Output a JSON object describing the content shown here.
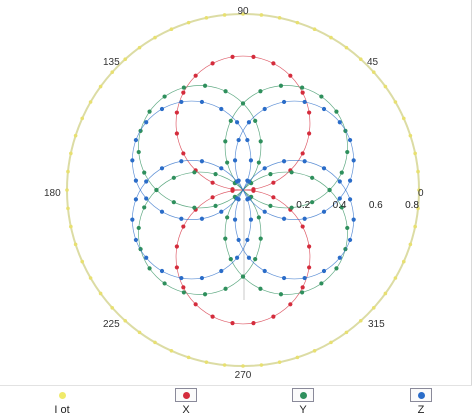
{
  "chart_data": {
    "type": "polar-scatter",
    "r_ticks": [
      "0.2",
      "0.4",
      "0.6",
      "0.8"
    ],
    "angle_ticks": [
      "0",
      "45",
      "90",
      "135",
      "180",
      "225",
      "270",
      "315"
    ],
    "r_max": 0.92,
    "grid": false,
    "legend_position": "bottom",
    "series": [
      {
        "name": "I ot",
        "color": "#e8e070",
        "r": 0.92,
        "theta_deg": [
          0,
          6,
          12,
          18,
          24,
          30,
          36,
          42,
          48,
          54,
          60,
          66,
          72,
          78,
          84,
          90,
          96,
          102,
          108,
          114,
          120,
          126,
          132,
          138,
          144,
          150,
          156,
          162,
          168,
          174,
          180,
          186,
          192,
          198,
          204,
          210,
          216,
          222,
          228,
          234,
          240,
          246,
          252,
          258,
          264,
          270,
          276,
          282,
          288,
          294,
          300,
          306,
          312,
          318,
          324,
          330,
          336,
          342,
          348,
          354
        ]
      },
      {
        "name": "X",
        "color": "#d42c3c",
        "lobe_centers_deg": [
          90,
          270
        ],
        "lobe_radius": 0.35,
        "points_per_lobe": 20
      },
      {
        "name": "Y",
        "color": "#2e8f5c",
        "lobe_centers_deg": [
          45,
          135,
          225,
          315
        ],
        "lobe_radius": 0.32,
        "points_per_lobe": 18
      },
      {
        "name": "Z",
        "color": "#2a6cc8",
        "lobe_centers_deg": [
          30,
          150,
          210,
          330
        ],
        "lobe_radius": 0.31,
        "points_per_lobe": 18
      }
    ]
  },
  "legend": {
    "items": [
      {
        "label": "I ot",
        "color": "#f0ea6a",
        "boxed": false
      },
      {
        "label": "X",
        "color": "#d42c3c",
        "boxed": true
      },
      {
        "label": "Y",
        "color": "#2e8f5c",
        "boxed": true
      },
      {
        "label": "Z",
        "color": "#2a6cc8",
        "boxed": true
      }
    ]
  }
}
